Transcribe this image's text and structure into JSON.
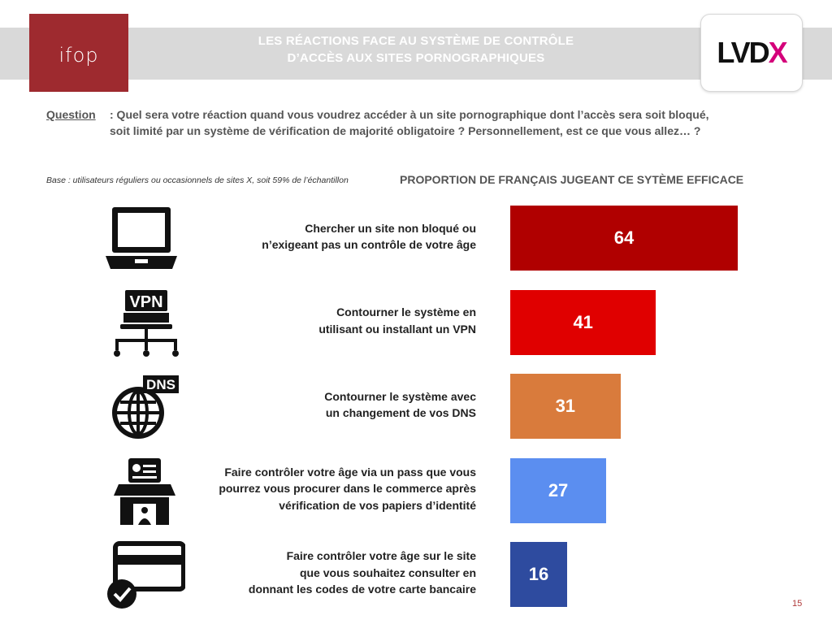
{
  "header": {
    "title_line1": "LES RÉACTIONS FACE AU SYSTÈME DE CONTRÔLE",
    "title_line2": "D’ACCÈS AUX SITES PORNOGRAPHIQUES",
    "ifop_logo_text": "ifop",
    "lvdx_logo_main": "LVD",
    "lvdx_logo_accent": "X"
  },
  "question": {
    "label": "Question",
    "text": ": Quel sera votre réaction quand vous voudrez accéder à un site pornographique dont l’accès sera soit bloqué, soit limité par un système de vérification de majorité obligatoire ? Personnellement, est ce que vous allez… ?"
  },
  "base_note": "Base : utilisateurs réguliers ou occasionnels de sites X, soit 59% de l’échantillon",
  "page_number": "15",
  "chart_data": {
    "type": "bar",
    "orientation": "horizontal",
    "title": "PROPORTION DE FRANÇAIS JUGEANT CE SYTÈME EFFICACE",
    "categories": [
      "Chercher un site non bloqué ou n’exigeant pas un contrôle de votre âge",
      "Contourner le système en utilisant ou installant un VPN",
      "Contourner le système avec un changement de vos DNS",
      "Faire contrôler votre âge via un pass que vous pourrez vous procurer dans le commerce après vérification de vos papiers d’identité",
      "Faire contrôler votre âge sur le site que vous souhaitez consulter en donnant les codes de votre carte bancaire"
    ],
    "label_lines": [
      [
        "Chercher un site non bloqué ou",
        "n’exigeant pas un contrôle de votre âge"
      ],
      [
        "Contourner le système en",
        "utilisant ou installant un VPN"
      ],
      [
        "Contourner le système avec",
        "un changement de vos DNS"
      ],
      [
        "Faire contrôler votre âge via un pass que vous",
        "pourrez vous procurer dans le commerce après",
        "vérification de vos papiers d’identité"
      ],
      [
        "Faire contrôler votre âge sur le site",
        "que vous souhaitez consulter en",
        "donnant les codes de votre carte bancaire"
      ]
    ],
    "values": [
      64,
      41,
      31,
      27,
      16
    ],
    "colors": [
      "#b00000",
      "#e00000",
      "#d97b3c",
      "#5b8ef0",
      "#2e4b9f"
    ],
    "icons": [
      "laptop-icon",
      "vpn-network-icon",
      "dns-globe-icon",
      "id-shop-icon",
      "credit-card-check-icon"
    ],
    "icon_texts": [
      "",
      "VPN",
      "DNS",
      "",
      ""
    ],
    "xlim": [
      0,
      64
    ]
  }
}
